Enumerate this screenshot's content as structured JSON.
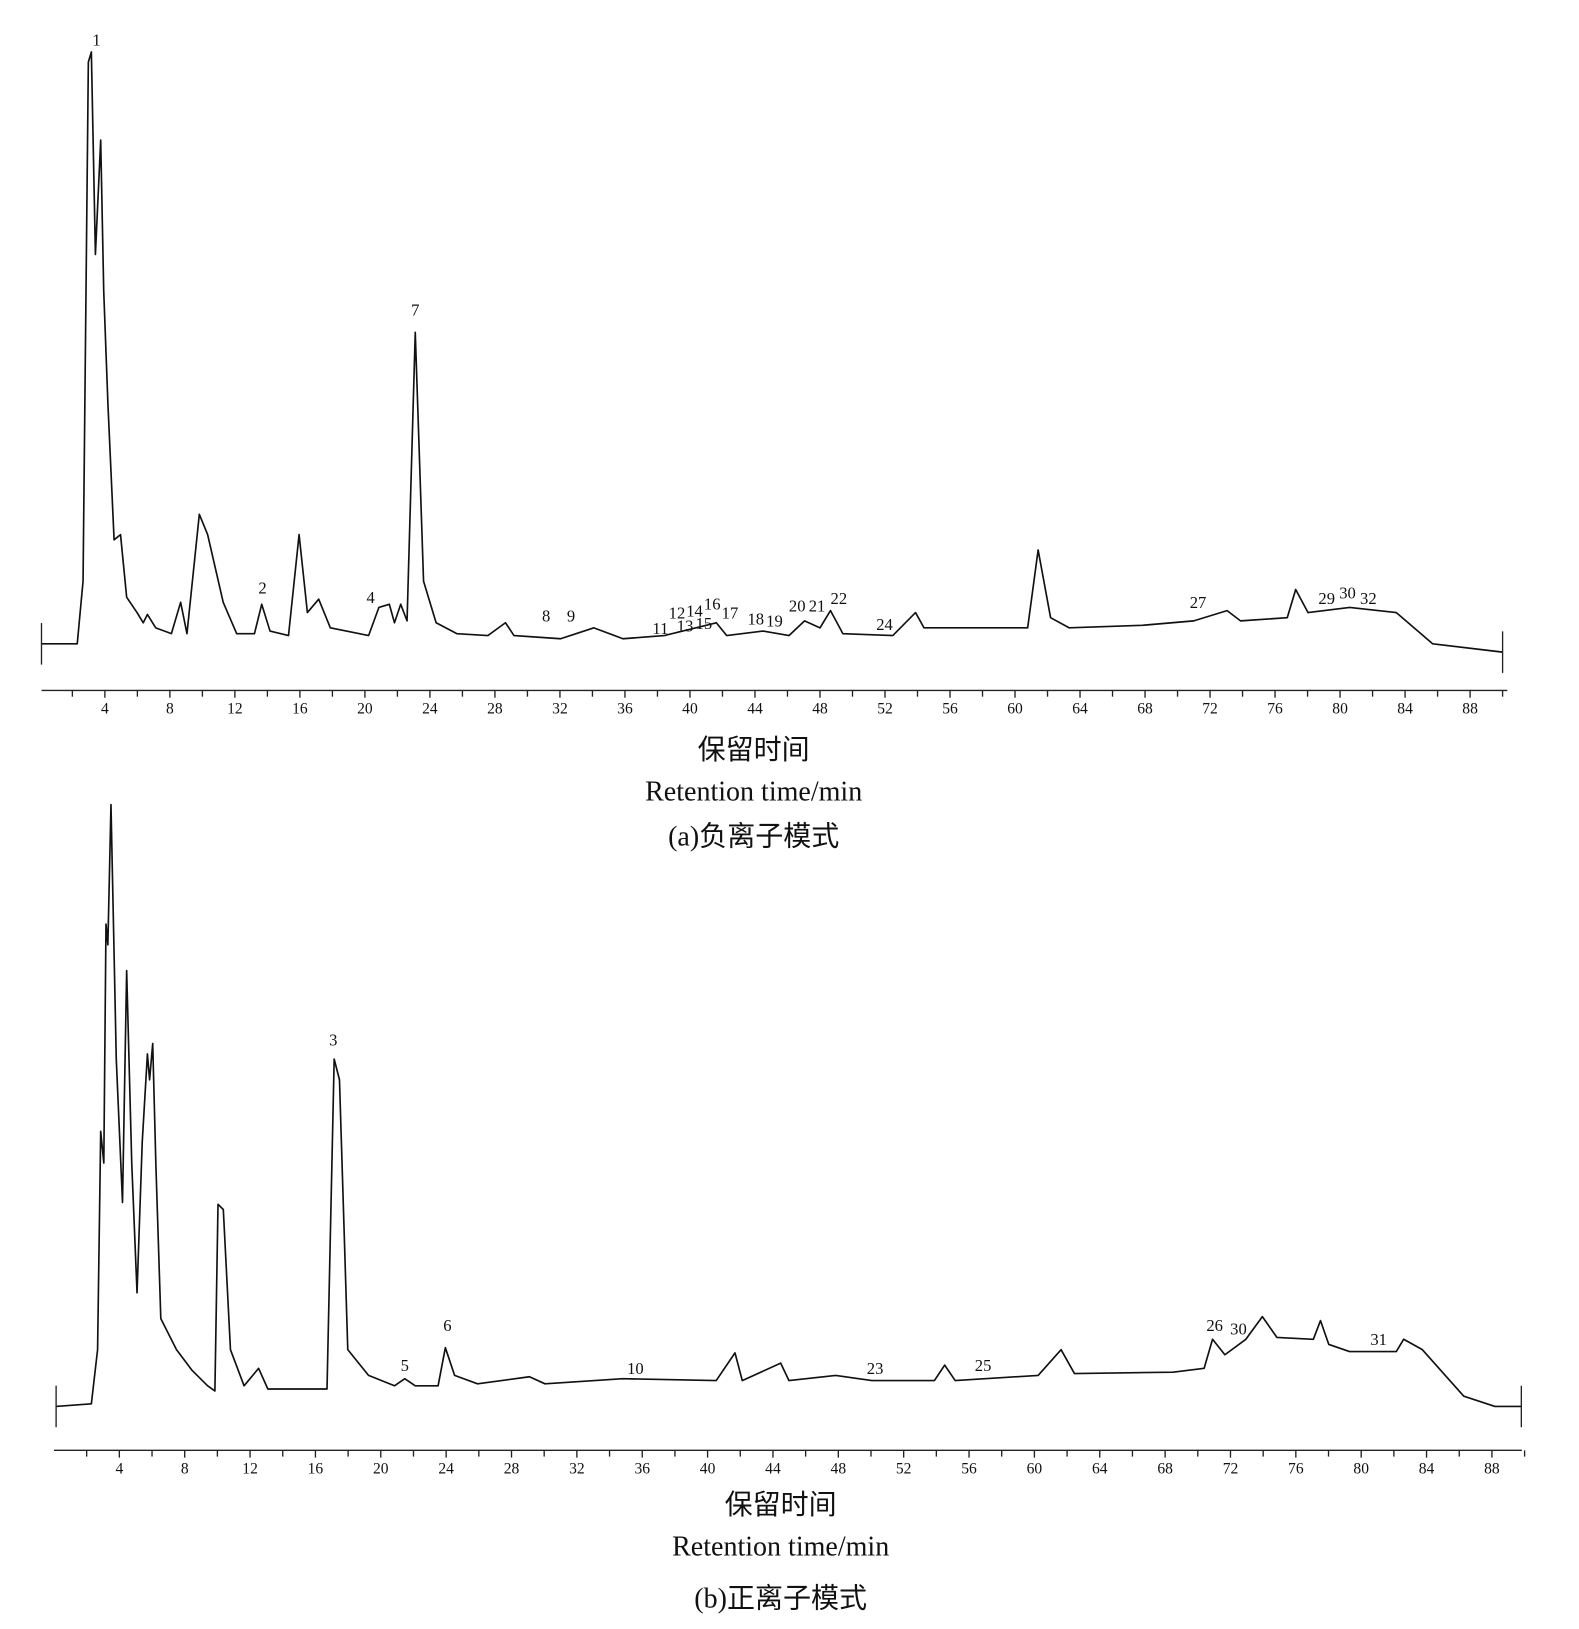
{
  "chart_data": [
    {
      "type": "line",
      "x_label": "保留时间",
      "x_label_en": "Retention  time/min",
      "caption": "(a)负离子模式",
      "xlim": [
        0,
        90
      ],
      "xticks": [
        4,
        8,
        12,
        16,
        20,
        24,
        28,
        32,
        36,
        40,
        44,
        48,
        52,
        56,
        60,
        64,
        68,
        72,
        76,
        80,
        84,
        88
      ],
      "minor_xticks": [
        2,
        6,
        10,
        14,
        18,
        22,
        26,
        30,
        34,
        38,
        42,
        46,
        50,
        54,
        58,
        62,
        66,
        70,
        74,
        78,
        82,
        86,
        90
      ],
      "color": "#111111",
      "x": [
        0.1,
        2.3,
        2.66,
        2.98,
        3.17,
        3.42,
        3.74,
        3.93,
        4.19,
        4.57,
        4.96,
        5.34,
        5.98,
        6.36,
        6.62,
        7.13,
        8.09,
        8.66,
        9.05,
        9.81,
        10.32,
        11.28,
        12.11,
        13.2,
        13.65,
        14.16,
        15.3,
        15.95,
        16.46,
        17.16,
        17.87,
        20.23,
        20.86,
        21.5,
        21.82,
        22.2,
        22.59,
        23.1,
        23.61,
        24.38,
        25.65,
        27.57,
        28.65,
        29.17,
        32.04,
        34.09,
        35.88,
        38.43,
        41.62,
        42.26,
        44.5,
        46.1,
        47.05,
        48.0,
        48.65,
        49.41,
        52.48,
        53.88,
        54.4,
        56.95,
        60.78,
        61.42,
        62.19,
        63.34,
        67.81,
        71.0,
        73.05,
        73.88,
        76.75,
        77.27,
        78.03,
        80.59,
        83.46,
        85.7,
        90.0
      ],
      "values": [
        7.3,
        7.3,
        17.1,
        98.4,
        100,
        68.3,
        86.2,
        62.6,
        44.7,
        23.6,
        24.4,
        14.6,
        12.2,
        10.6,
        11.9,
        9.8,
        8.9,
        13.8,
        8.9,
        27.6,
        24.4,
        13.8,
        8.9,
        8.9,
        13.5,
        9.3,
        8.6,
        24.4,
        12.2,
        14.3,
        9.8,
        8.6,
        13.0,
        13.5,
        10.6,
        13.5,
        10.9,
        56.1,
        17.1,
        10.6,
        8.9,
        8.6,
        10.6,
        8.6,
        8.1,
        9.8,
        8.1,
        8.6,
        10.6,
        8.6,
        9.3,
        8.6,
        10.9,
        9.8,
        12.5,
        8.9,
        8.6,
        12.2,
        9.8,
        9.8,
        9.8,
        22.0,
        11.4,
        9.8,
        10.2,
        10.9,
        12.5,
        10.9,
        11.4,
        15.8,
        12.2,
        13.0,
        12.2,
        7.3,
        6.0
      ],
      "annotations": [
        {
          "text": "1",
          "x": 3.49,
          "y": 101.6
        },
        {
          "text": "2",
          "x": 13.7,
          "y": 15.8
        },
        {
          "text": "4",
          "x": 20.35,
          "y": 14.3
        },
        {
          "text": "7",
          "x": 23.1,
          "y": 59.3
        },
        {
          "text": "8",
          "x": 31.15,
          "y": 11.4
        },
        {
          "text": "9",
          "x": 32.68,
          "y": 11.4
        },
        {
          "text": "11",
          "x": 38.18,
          "y": 9.4
        },
        {
          "text": "12",
          "x": 39.2,
          "y": 11.9
        },
        {
          "text": "13",
          "x": 39.7,
          "y": 9.8
        },
        {
          "text": "14",
          "x": 40.28,
          "y": 12.2
        },
        {
          "text": "15",
          "x": 40.86,
          "y": 10.2
        },
        {
          "text": "16",
          "x": 41.37,
          "y": 13.3
        },
        {
          "text": "17",
          "x": 42.46,
          "y": 11.9
        },
        {
          "text": "18",
          "x": 44.05,
          "y": 10.9
        },
        {
          "text": "19",
          "x": 45.2,
          "y": 10.6
        },
        {
          "text": "20",
          "x": 46.6,
          "y": 13.0
        },
        {
          "text": "21",
          "x": 47.82,
          "y": 13.0
        },
        {
          "text": "22",
          "x": 49.16,
          "y": 14.1
        },
        {
          "text": "24",
          "x": 51.97,
          "y": 10.1
        },
        {
          "text": "27",
          "x": 71.26,
          "y": 13.5
        },
        {
          "text": "29",
          "x": 79.18,
          "y": 14.1
        },
        {
          "text": "30",
          "x": 80.46,
          "y": 15.0
        },
        {
          "text": "32",
          "x": 81.74,
          "y": 14.1
        }
      ]
    },
    {
      "type": "line",
      "x_label": "保留时间",
      "x_label_en": "Retention  time/min",
      "caption": "(b)正离子模式",
      "xlim": [
        0,
        90
      ],
      "xticks": [
        4,
        8,
        12,
        16,
        20,
        24,
        28,
        32,
        36,
        40,
        44,
        48,
        52,
        56,
        60,
        64,
        68,
        72,
        76,
        80,
        84,
        88
      ],
      "minor_xticks": [
        2,
        6,
        10,
        14,
        18,
        22,
        26,
        30,
        34,
        38,
        42,
        46,
        50,
        54,
        58,
        62,
        66,
        70,
        74,
        78,
        82,
        86,
        90
      ],
      "color": "#111111",
      "x": [
        0.13,
        2.29,
        2.67,
        2.86,
        3.05,
        3.18,
        3.3,
        3.49,
        3.81,
        4.19,
        4.45,
        4.76,
        5.08,
        5.4,
        5.72,
        5.85,
        6.04,
        6.23,
        6.54,
        7.5,
        8.45,
        9.4,
        9.85,
        10.04,
        10.36,
        10.8,
        11.63,
        12.52,
        13.09,
        16.71,
        17.15,
        17.47,
        17.98,
        19.25,
        20.84,
        21.47,
        22.11,
        23.51,
        23.95,
        24.52,
        25.92,
        29.1,
        30.05,
        34.82,
        40.53,
        41.68,
        42.12,
        44.47,
        44.98,
        47.84,
        50.06,
        53.88,
        54.51,
        55.15,
        60.23,
        61.63,
        62.45,
        68.49,
        70.39,
        70.9,
        71.66,
        72.94,
        73.95,
        74.84,
        77.07,
        77.51,
        78.02,
        79.29,
        82.15,
        82.6,
        83.74,
        86.28,
        88.18,
        89.8
      ],
      "values": [
        6.8,
        7.2,
        15.6,
        49.4,
        44.5,
        81.5,
        78.3,
        100,
        60.6,
        38.4,
        74.3,
        44.5,
        24.4,
        47.7,
        61.4,
        57.4,
        63.0,
        44.5,
        20.4,
        15.6,
        12.4,
        10.0,
        9.2,
        38.1,
        37.3,
        15.6,
        10.0,
        12.7,
        9.5,
        9.5,
        60.6,
        57.4,
        15.6,
        11.6,
        10.0,
        11.1,
        10.0,
        10.0,
        15.9,
        11.6,
        10.3,
        11.4,
        10.3,
        11.1,
        10.8,
        15.1,
        10.8,
        13.5,
        10.8,
        11.6,
        10.8,
        10.8,
        13.2,
        10.8,
        11.6,
        15.6,
        11.9,
        12.1,
        12.7,
        17.2,
        14.8,
        17.2,
        20.7,
        17.5,
        17.2,
        20.1,
        16.4,
        15.3,
        15.3,
        17.2,
        15.6,
        8.4,
        6.8,
        6.8
      ],
      "annotations": [
        {
          "text": "3",
          "x": 17.09,
          "y": 63.3
        },
        {
          "text": "5",
          "x": 21.47,
          "y": 12.9
        },
        {
          "text": "6",
          "x": 24.08,
          "y": 19.1
        },
        {
          "text": "10",
          "x": 35.58,
          "y": 12.4
        },
        {
          "text": "23",
          "x": 50.25,
          "y": 12.4
        },
        {
          "text": "25",
          "x": 56.86,
          "y": 12.9
        },
        {
          "text": "26",
          "x": 71.03,
          "y": 19.1
        },
        {
          "text": "30",
          "x": 72.49,
          "y": 18.5
        },
        {
          "text": "31",
          "x": 81.07,
          "y": 16.9
        }
      ]
    }
  ]
}
